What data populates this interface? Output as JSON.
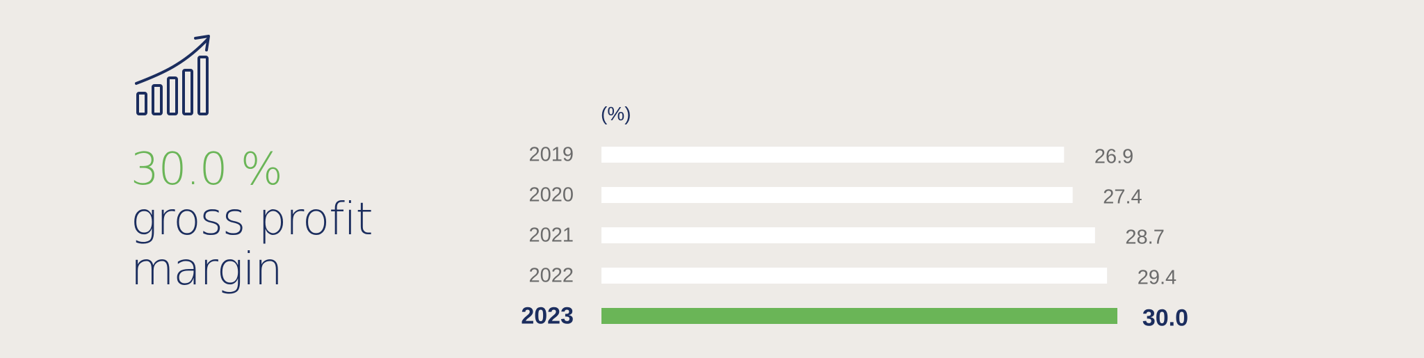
{
  "headline": {
    "value": "30.0 %",
    "label_line1": "gross profit",
    "label_line2": "margin"
  },
  "icon": "growth-bar-chart-icon",
  "colors": {
    "background": "#eeebe7",
    "navy": "#1b2d5e",
    "green": "#6ab557",
    "bar": "#ffffff",
    "muted_text": "#6b6b6b"
  },
  "chart_data": {
    "type": "bar",
    "orientation": "horizontal",
    "unit_label": "(%)",
    "categories": [
      "2019",
      "2020",
      "2021",
      "2022",
      "2023"
    ],
    "values": [
      26.9,
      27.4,
      28.7,
      29.4,
      30.0
    ],
    "value_labels": [
      "26.9",
      "27.4",
      "28.7",
      "29.4",
      "30.0"
    ],
    "highlight_index": 4,
    "xlim": [
      0,
      30.0
    ]
  }
}
